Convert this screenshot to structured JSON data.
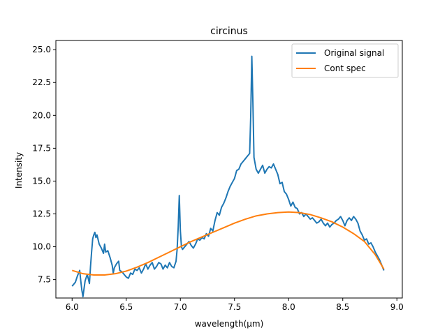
{
  "chart_data": {
    "type": "line",
    "title": "circinus",
    "xlabel": "wavelength(µm)",
    "ylabel": "Intensity",
    "xlim": [
      5.85,
      9.05
    ],
    "ylim": [
      6.1,
      25.7
    ],
    "xticks": [
      6.0,
      6.5,
      7.0,
      7.5,
      8.0,
      8.5,
      9.0
    ],
    "xtick_labels": [
      "6.0",
      "6.5",
      "7.0",
      "7.5",
      "8.0",
      "8.5",
      "9.0"
    ],
    "yticks": [
      7.5,
      10.0,
      12.5,
      15.0,
      17.5,
      20.0,
      22.5,
      25.0
    ],
    "ytick_labels": [
      "7.5",
      "10.0",
      "12.5",
      "15.0",
      "17.5",
      "20.0",
      "22.5",
      "25.0"
    ],
    "grid": false,
    "legend_position": "top-right",
    "series": [
      {
        "name": "Original signal",
        "color": "#1f77b4",
        "points": [
          [
            6.0,
            7.0
          ],
          [
            6.03,
            7.3
          ],
          [
            6.05,
            7.8
          ],
          [
            6.07,
            8.2
          ],
          [
            6.08,
            7.4
          ],
          [
            6.09,
            6.7
          ],
          [
            6.1,
            6.2
          ],
          [
            6.12,
            7.4
          ],
          [
            6.14,
            7.9
          ],
          [
            6.16,
            7.2
          ],
          [
            6.17,
            8.5
          ],
          [
            6.18,
            9.6
          ],
          [
            6.19,
            10.6
          ],
          [
            6.2,
            10.9
          ],
          [
            6.21,
            11.1
          ],
          [
            6.22,
            10.7
          ],
          [
            6.23,
            10.9
          ],
          [
            6.25,
            10.2
          ],
          [
            6.27,
            9.9
          ],
          [
            6.29,
            9.5
          ],
          [
            6.3,
            10.2
          ],
          [
            6.31,
            9.6
          ],
          [
            6.33,
            9.7
          ],
          [
            6.35,
            9.2
          ],
          [
            6.37,
            8.6
          ],
          [
            6.38,
            8.0
          ],
          [
            6.39,
            8.4
          ],
          [
            6.41,
            8.7
          ],
          [
            6.43,
            8.9
          ],
          [
            6.44,
            8.2
          ],
          [
            6.46,
            8.1
          ],
          [
            6.48,
            7.9
          ],
          [
            6.5,
            7.7
          ],
          [
            6.52,
            7.6
          ],
          [
            6.54,
            8.0
          ],
          [
            6.56,
            7.9
          ],
          [
            6.58,
            8.3
          ],
          [
            6.6,
            8.2
          ],
          [
            6.62,
            8.4
          ],
          [
            6.64,
            8.0
          ],
          [
            6.66,
            8.3
          ],
          [
            6.68,
            8.7
          ],
          [
            6.7,
            8.3
          ],
          [
            6.72,
            8.6
          ],
          [
            6.74,
            8.8
          ],
          [
            6.76,
            8.3
          ],
          [
            6.78,
            8.5
          ],
          [
            6.8,
            8.8
          ],
          [
            6.82,
            8.7
          ],
          [
            6.84,
            8.3
          ],
          [
            6.86,
            8.6
          ],
          [
            6.88,
            8.4
          ],
          [
            6.9,
            8.8
          ],
          [
            6.92,
            8.5
          ],
          [
            6.94,
            8.4
          ],
          [
            6.96,
            8.9
          ],
          [
            6.97,
            9.8
          ],
          [
            6.98,
            11.5
          ],
          [
            6.99,
            13.9
          ],
          [
            7.0,
            11.2
          ],
          [
            7.01,
            10.0
          ],
          [
            7.02,
            9.8
          ],
          [
            7.04,
            10.0
          ],
          [
            7.06,
            10.2
          ],
          [
            7.08,
            10.4
          ],
          [
            7.1,
            10.1
          ],
          [
            7.12,
            9.9
          ],
          [
            7.14,
            10.2
          ],
          [
            7.16,
            10.6
          ],
          [
            7.18,
            10.5
          ],
          [
            7.2,
            10.7
          ],
          [
            7.22,
            10.6
          ],
          [
            7.24,
            11.0
          ],
          [
            7.26,
            10.8
          ],
          [
            7.28,
            11.4
          ],
          [
            7.3,
            11.2
          ],
          [
            7.32,
            12.0
          ],
          [
            7.34,
            12.6
          ],
          [
            7.36,
            12.4
          ],
          [
            7.38,
            13.0
          ],
          [
            7.4,
            13.3
          ],
          [
            7.42,
            13.7
          ],
          [
            7.44,
            14.2
          ],
          [
            7.46,
            14.6
          ],
          [
            7.48,
            14.9
          ],
          [
            7.5,
            15.2
          ],
          [
            7.52,
            15.8
          ],
          [
            7.54,
            15.9
          ],
          [
            7.56,
            16.3
          ],
          [
            7.58,
            16.5
          ],
          [
            7.6,
            16.7
          ],
          [
            7.62,
            16.9
          ],
          [
            7.64,
            17.1
          ],
          [
            7.65,
            20.0
          ],
          [
            7.66,
            24.5
          ],
          [
            7.67,
            21.0
          ],
          [
            7.68,
            16.8
          ],
          [
            7.7,
            15.9
          ],
          [
            7.72,
            15.6
          ],
          [
            7.74,
            15.9
          ],
          [
            7.76,
            16.2
          ],
          [
            7.78,
            15.6
          ],
          [
            7.8,
            15.9
          ],
          [
            7.82,
            16.1
          ],
          [
            7.84,
            16.0
          ],
          [
            7.86,
            16.3
          ],
          [
            7.88,
            15.9
          ],
          [
            7.9,
            15.5
          ],
          [
            7.92,
            14.8
          ],
          [
            7.94,
            14.9
          ],
          [
            7.96,
            14.2
          ],
          [
            7.98,
            14.0
          ],
          [
            8.0,
            13.6
          ],
          [
            8.02,
            13.1
          ],
          [
            8.04,
            13.4
          ],
          [
            8.06,
            13.0
          ],
          [
            8.08,
            12.9
          ],
          [
            8.1,
            12.5
          ],
          [
            8.12,
            12.6
          ],
          [
            8.14,
            12.3
          ],
          [
            8.16,
            12.5
          ],
          [
            8.18,
            12.3
          ],
          [
            8.2,
            12.1
          ],
          [
            8.22,
            12.2
          ],
          [
            8.24,
            12.0
          ],
          [
            8.26,
            11.8
          ],
          [
            8.28,
            11.9
          ],
          [
            8.3,
            12.1
          ],
          [
            8.32,
            11.8
          ],
          [
            8.34,
            11.6
          ],
          [
            8.36,
            11.8
          ],
          [
            8.38,
            11.5
          ],
          [
            8.4,
            11.7
          ],
          [
            8.42,
            11.8
          ],
          [
            8.44,
            12.0
          ],
          [
            8.46,
            12.1
          ],
          [
            8.48,
            12.3
          ],
          [
            8.5,
            12.0
          ],
          [
            8.52,
            11.6
          ],
          [
            8.54,
            12.0
          ],
          [
            8.56,
            12.2
          ],
          [
            8.58,
            12.0
          ],
          [
            8.6,
            12.3
          ],
          [
            8.62,
            12.1
          ],
          [
            8.64,
            11.8
          ],
          [
            8.66,
            11.2
          ],
          [
            8.68,
            10.9
          ],
          [
            8.7,
            10.5
          ],
          [
            8.72,
            10.6
          ],
          [
            8.74,
            10.2
          ],
          [
            8.76,
            10.3
          ],
          [
            8.78,
            10.0
          ],
          [
            8.8,
            9.6
          ],
          [
            8.82,
            9.3
          ],
          [
            8.84,
            9.0
          ],
          [
            8.86,
            8.6
          ],
          [
            8.88,
            8.2
          ]
        ]
      },
      {
        "name": "Cont spec",
        "color": "#ff7f0e",
        "points": [
          [
            6.0,
            8.2
          ],
          [
            6.1,
            7.95
          ],
          [
            6.2,
            7.85
          ],
          [
            6.3,
            7.85
          ],
          [
            6.4,
            7.95
          ],
          [
            6.5,
            8.15
          ],
          [
            6.6,
            8.45
          ],
          [
            6.7,
            8.8
          ],
          [
            6.8,
            9.2
          ],
          [
            6.9,
            9.6
          ],
          [
            7.0,
            10.0
          ],
          [
            7.1,
            10.4
          ],
          [
            7.2,
            10.75
          ],
          [
            7.3,
            11.1
          ],
          [
            7.4,
            11.45
          ],
          [
            7.5,
            11.8
          ],
          [
            7.6,
            12.1
          ],
          [
            7.7,
            12.35
          ],
          [
            7.8,
            12.5
          ],
          [
            7.9,
            12.6
          ],
          [
            8.0,
            12.65
          ],
          [
            8.1,
            12.6
          ],
          [
            8.2,
            12.45
          ],
          [
            8.3,
            12.2
          ],
          [
            8.4,
            11.9
          ],
          [
            8.5,
            11.5
          ],
          [
            8.6,
            11.0
          ],
          [
            8.7,
            10.4
          ],
          [
            8.8,
            9.4
          ],
          [
            8.88,
            8.3
          ]
        ]
      }
    ]
  }
}
